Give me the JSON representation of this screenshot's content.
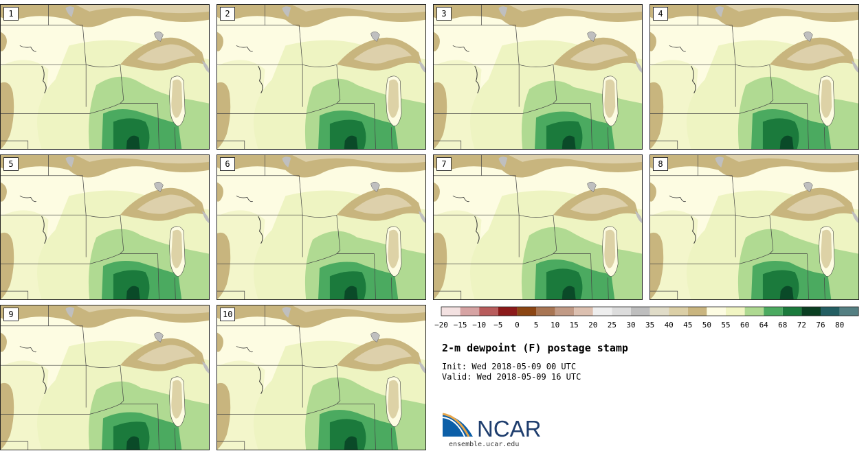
{
  "figure": {
    "title": "2-m dewpoint (F) postage stamp",
    "init_label": "Init:",
    "init_time": "Wed 2018-05-09 00 UTC",
    "valid_label": "Valid:",
    "valid_time": "Wed 2018-05-09 16 UTC"
  },
  "members": [
    "1",
    "2",
    "3",
    "4",
    "5",
    "6",
    "7",
    "8",
    "9",
    "10"
  ],
  "colorbar": {
    "ticks": [
      "−20",
      "−15",
      "−10",
      "−5",
      "0",
      "5",
      "10",
      "15",
      "20",
      "25",
      "30",
      "35",
      "40",
      "45",
      "50",
      "55",
      "60",
      "64",
      "68",
      "72",
      "76",
      "80"
    ],
    "colors": [
      "#f3e1e1",
      "#d6a3a3",
      "#b85c5c",
      "#8b1a1a",
      "#8b4513",
      "#a87553",
      "#c19a85",
      "#dcc0b0",
      "#eeeeee",
      "#dcdcdc",
      "#bebebe",
      "#e0dcc8",
      "#dbcfa6",
      "#c9b57f",
      "#fdfce2",
      "#f1f5c3",
      "#aed991",
      "#4baa60",
      "#1b7a3c",
      "#0a3f22",
      "#235e62",
      "#547f82"
    ]
  },
  "map_colors": {
    "base": "#fdfce2",
    "light_green": "#eef4c2",
    "green": "#b0da92",
    "mid_green": "#4baa60",
    "dark_green": "#1b7a3c",
    "darkest_green": "#0a4a28",
    "tan": "#c8b57e",
    "light_tan": "#ddd0ab",
    "gray": "#bfbfbf",
    "border": "#444444"
  },
  "logo": {
    "text": "NCAR",
    "url": "ensemble.ucar.edu"
  }
}
